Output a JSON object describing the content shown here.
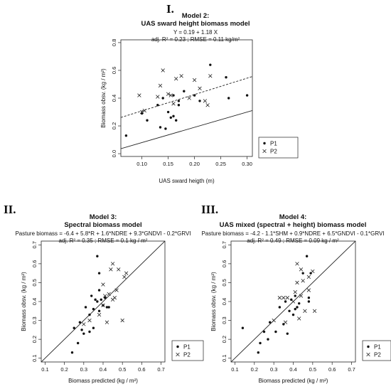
{
  "chart_data": [
    {
      "type": "scatter",
      "roman": "I.",
      "title": "Model 2:",
      "subtitle": "UAS sward height biomass model",
      "equation": "Y = 0.19 + 1.18 X",
      "stats": "adj. R² = 0.23 ; RMSE = 0.11 kg/m²",
      "xlabel": "UAS sward heigth (m)",
      "ylabel": "Biomass obsv. (kg / m²)",
      "xlim": [
        0.06,
        0.31
      ],
      "ylim": [
        -0.02,
        0.82
      ],
      "xticks": [
        "0.10",
        "0.15",
        "0.20",
        "0.25",
        "0.30"
      ],
      "yticks": [
        "0.0",
        "0.2",
        "0.4",
        "0.6",
        "0.8"
      ],
      "xtick_values": [
        0.1,
        0.15,
        0.2,
        0.25,
        0.3
      ],
      "ytick_values": [
        0.0,
        0.2,
        0.4,
        0.6,
        0.8
      ],
      "legend": [
        "P1",
        "P2"
      ],
      "legend_position": "bottom-right",
      "grid": false,
      "lines": [
        {
          "style": "solid",
          "intercept": -0.03,
          "slope": 1.1
        },
        {
          "style": "dashed",
          "intercept": 0.19,
          "slope": 1.18
        }
      ],
      "series": [
        {
          "name": "P1",
          "marker": "dot",
          "points": [
            [
              0.07,
              0.13
            ],
            [
              0.1,
              0.29
            ],
            [
              0.11,
              0.24
            ],
            [
              0.13,
              0.35
            ],
            [
              0.135,
              0.19
            ],
            [
              0.14,
              0.4
            ],
            [
              0.145,
              0.18
            ],
            [
              0.15,
              0.3
            ],
            [
              0.155,
              0.26
            ],
            [
              0.16,
              0.27
            ],
            [
              0.16,
              0.42
            ],
            [
              0.165,
              0.24
            ],
            [
              0.17,
              0.38
            ],
            [
              0.17,
              0.35
            ],
            [
              0.18,
              0.45
            ],
            [
              0.2,
              0.42
            ],
            [
              0.21,
              0.38
            ],
            [
              0.23,
              0.64
            ],
            [
              0.26,
              0.55
            ],
            [
              0.265,
              0.4
            ],
            [
              0.3,
              0.42
            ]
          ]
        },
        {
          "name": "P2",
          "marker": "cross",
          "points": [
            [
              0.095,
              0.42
            ],
            [
              0.1,
              0.3
            ],
            [
              0.105,
              0.31
            ],
            [
              0.13,
              0.41
            ],
            [
              0.135,
              0.49
            ],
            [
              0.14,
              0.6
            ],
            [
              0.15,
              0.43
            ],
            [
              0.155,
              0.42
            ],
            [
              0.16,
              0.36
            ],
            [
              0.165,
              0.54
            ],
            [
              0.175,
              0.56
            ],
            [
              0.19,
              0.4
            ],
            [
              0.2,
              0.53
            ],
            [
              0.21,
              0.47
            ],
            [
              0.22,
              0.38
            ],
            [
              0.225,
              0.35
            ],
            [
              0.23,
              0.56
            ]
          ]
        }
      ]
    },
    {
      "type": "scatter",
      "roman": "II.",
      "title": "Model 3:",
      "subtitle": "Spectral biomass model",
      "equation": "Pasture biomass = -6.4 + 5.8*R + 1.6*NDRE + 9.3*GNDVI - 0.2*GRVI",
      "stats": "adj. R² = 0.35 ; RMSE = 0.1 kg / m²",
      "xlabel": "Biomass predicted (kg / m²)",
      "ylabel": "Biomass obsv. (kg / m²)",
      "xlim": [
        0.08,
        0.72
      ],
      "ylim": [
        0.08,
        0.72
      ],
      "xticks": [
        "0.1",
        "0.2",
        "0.3",
        "0.4",
        "0.5",
        "0.6",
        "0.7"
      ],
      "yticks": [
        "0.1",
        "0.2",
        "0.3",
        "0.4",
        "0.5",
        "0.6",
        "0.7"
      ],
      "xtick_values": [
        0.1,
        0.2,
        0.3,
        0.4,
        0.5,
        0.6,
        0.7
      ],
      "ytick_values": [
        0.1,
        0.2,
        0.3,
        0.4,
        0.5,
        0.6,
        0.7
      ],
      "legend": [
        "P1",
        "P2"
      ],
      "legend_position": "bottom-right",
      "grid": false,
      "lines": [
        {
          "style": "solid",
          "intercept": 0,
          "slope": 1
        }
      ],
      "series": [
        {
          "name": "P1",
          "marker": "dot",
          "points": [
            [
              0.24,
              0.13
            ],
            [
              0.25,
              0.26
            ],
            [
              0.27,
              0.18
            ],
            [
              0.28,
              0.29
            ],
            [
              0.29,
              0.25
            ],
            [
              0.3,
              0.23
            ],
            [
              0.31,
              0.37
            ],
            [
              0.33,
              0.24
            ],
            [
              0.33,
              0.33
            ],
            [
              0.34,
              0.43
            ],
            [
              0.35,
              0.26
            ],
            [
              0.35,
              0.36
            ],
            [
              0.36,
              0.41
            ],
            [
              0.37,
              0.4
            ],
            [
              0.38,
              0.46
            ],
            [
              0.38,
              0.35
            ],
            [
              0.37,
              0.64
            ],
            [
              0.38,
              0.55
            ],
            [
              0.39,
              0.41
            ],
            [
              0.4,
              0.38
            ],
            [
              0.41,
              0.42
            ],
            [
              0.42,
              0.37
            ],
            [
              0.43,
              0.37
            ]
          ]
        },
        {
          "name": "P2",
          "marker": "cross",
          "points": [
            [
              0.3,
              0.28
            ],
            [
              0.33,
              0.3
            ],
            [
              0.38,
              0.33
            ],
            [
              0.4,
              0.38
            ],
            [
              0.41,
              0.43
            ],
            [
              0.42,
              0.29
            ],
            [
              0.43,
              0.44
            ],
            [
              0.44,
              0.57
            ],
            [
              0.45,
              0.41
            ],
            [
              0.45,
              0.6
            ],
            [
              0.46,
              0.42
            ],
            [
              0.47,
              0.46
            ],
            [
              0.48,
              0.57
            ],
            [
              0.5,
              0.3
            ],
            [
              0.51,
              0.53
            ],
            [
              0.52,
              0.55
            ],
            [
              0.4,
              0.49
            ]
          ]
        }
      ]
    },
    {
      "type": "scatter",
      "roman": "III.",
      "title": "Model 4:",
      "subtitle": "UAS mixed (spectral + height) biomass model",
      "equation": "Pasture biomass = -4.2 - 1.1*SHM + 0.9*NDRE + 6.5*GNDVI - 0.1*GRVI",
      "stats": "adj. R² = 0.49 ; RMSE = 0.09 kg / m²",
      "xlabel": "Biomass predicted (kg / m²)",
      "ylabel": "Biomass obsv. (kg / m²)",
      "xlim": [
        0.08,
        0.72
      ],
      "ylim": [
        0.08,
        0.72
      ],
      "xticks": [
        "0.1",
        "0.2",
        "0.3",
        "0.4",
        "0.5",
        "0.6",
        "0.7"
      ],
      "yticks": [
        "0.1",
        "0.2",
        "0.3",
        "0.4",
        "0.5",
        "0.6",
        "0.7"
      ],
      "xtick_values": [
        0.1,
        0.2,
        0.3,
        0.4,
        0.5,
        0.6,
        0.7
      ],
      "ytick_values": [
        0.1,
        0.2,
        0.3,
        0.4,
        0.5,
        0.6,
        0.7
      ],
      "legend": [
        "P1",
        "P2"
      ],
      "legend_position": "bottom-right",
      "grid": false,
      "lines": [
        {
          "style": "solid",
          "intercept": 0,
          "slope": 1
        }
      ],
      "series": [
        {
          "name": "P1",
          "marker": "dot",
          "points": [
            [
              0.14,
              0.26
            ],
            [
              0.22,
              0.13
            ],
            [
              0.23,
              0.18
            ],
            [
              0.25,
              0.24
            ],
            [
              0.27,
              0.2
            ],
            [
              0.28,
              0.29
            ],
            [
              0.31,
              0.24
            ],
            [
              0.33,
              0.37
            ],
            [
              0.35,
              0.28
            ],
            [
              0.36,
              0.4
            ],
            [
              0.37,
              0.23
            ],
            [
              0.38,
              0.35
            ],
            [
              0.39,
              0.41
            ],
            [
              0.4,
              0.33
            ],
            [
              0.41,
              0.36
            ],
            [
              0.41,
              0.43
            ],
            [
              0.42,
              0.37
            ],
            [
              0.43,
              0.39
            ],
            [
              0.45,
              0.55
            ],
            [
              0.47,
              0.64
            ],
            [
              0.48,
              0.4
            ],
            [
              0.48,
              0.42
            ],
            [
              0.49,
              0.55
            ]
          ]
        },
        {
          "name": "P2",
          "marker": "cross",
          "points": [
            [
              0.3,
              0.3
            ],
            [
              0.33,
              0.42
            ],
            [
              0.35,
              0.42
            ],
            [
              0.36,
              0.29
            ],
            [
              0.37,
              0.42
            ],
            [
              0.4,
              0.4
            ],
            [
              0.41,
              0.45
            ],
            [
              0.42,
              0.5
            ],
            [
              0.42,
              0.6
            ],
            [
              0.43,
              0.31
            ],
            [
              0.44,
              0.43
            ],
            [
              0.44,
              0.57
            ],
            [
              0.45,
              0.51
            ],
            [
              0.46,
              0.35
            ],
            [
              0.48,
              0.46
            ],
            [
              0.5,
              0.56
            ],
            [
              0.51,
              0.35
            ],
            [
              0.48,
              0.53
            ]
          ]
        }
      ]
    }
  ]
}
